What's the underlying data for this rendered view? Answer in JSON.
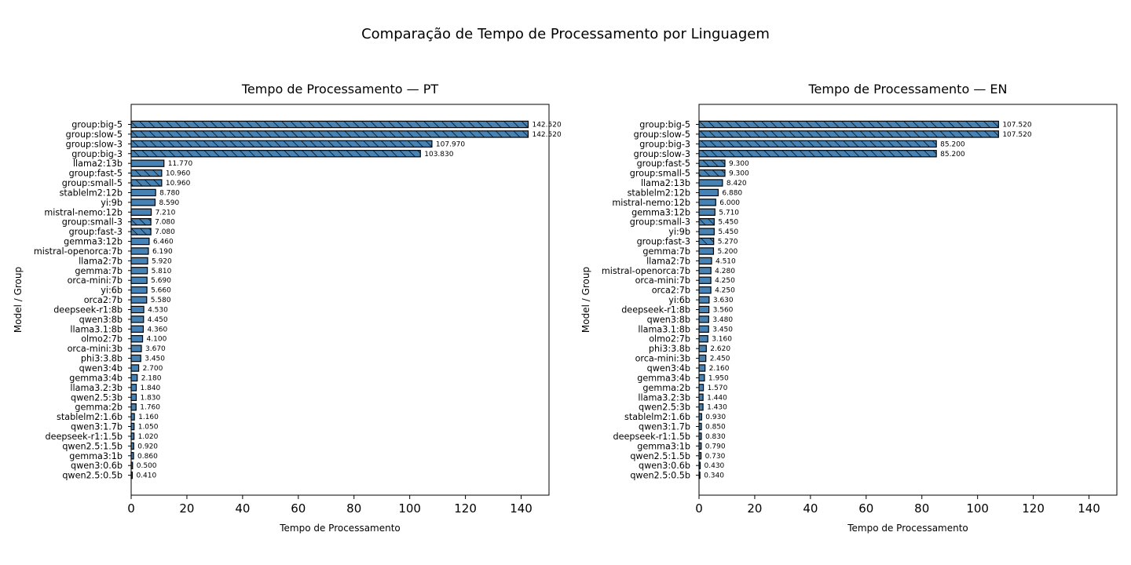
{
  "figure": {
    "title": "Comparação de Tempo de Processamento por Linguagem"
  },
  "colors": {
    "bar_fill": "#4682b4",
    "bar_edge": "#000000",
    "axes": "#000000",
    "text": "#000000"
  },
  "chart_data": [
    {
      "type": "bar",
      "orientation": "horizontal",
      "title": "Tempo de Processamento — PT",
      "xlabel": "Tempo de Processamento",
      "ylabel": "Model / Group",
      "xlim": [
        0,
        150
      ],
      "xticks": [
        0,
        20,
        40,
        60,
        80,
        100,
        120,
        140
      ],
      "grid": false,
      "categories": [
        "group:big-5",
        "group:slow-5",
        "group:slow-3",
        "group:big-3",
        "llama2:13b",
        "group:fast-5",
        "group:small-5",
        "stablelm2:12b",
        "yi:9b",
        "mistral-nemo:12b",
        "group:small-3",
        "group:fast-3",
        "gemma3:12b",
        "mistral-openorca:7b",
        "llama2:7b",
        "gemma:7b",
        "orca-mini:7b",
        "yi:6b",
        "orca2:7b",
        "deepseek-r1:8b",
        "qwen3:8b",
        "llama3.1:8b",
        "olmo2:7b",
        "orca-mini:3b",
        "phi3:3.8b",
        "qwen3:4b",
        "gemma3:4b",
        "llama3.2:3b",
        "qwen2.5:3b",
        "gemma:2b",
        "stablelm2:1.6b",
        "qwen3:1.7b",
        "deepseek-r1:1.5b",
        "qwen2.5:1.5b",
        "gemma3:1b",
        "qwen3:0.6b",
        "qwen2.5:0.5b"
      ],
      "values": [
        142.52,
        142.52,
        107.97,
        103.83,
        11.77,
        10.96,
        10.96,
        8.78,
        8.59,
        7.21,
        7.08,
        7.08,
        6.46,
        6.19,
        5.92,
        5.81,
        5.69,
        5.66,
        5.58,
        4.53,
        4.45,
        4.36,
        4.1,
        3.67,
        3.45,
        2.7,
        2.18,
        1.84,
        1.83,
        1.76,
        1.16,
        1.05,
        1.02,
        0.92,
        0.86,
        0.5,
        0.41
      ],
      "value_labels": [
        "142.520",
        "142.520",
        "107.970",
        "103.830",
        "11.770",
        "10.960",
        "10.960",
        "8.780",
        "8.590",
        "7.210",
        "7.080",
        "7.080",
        "6.460",
        "6.190",
        "5.920",
        "5.810",
        "5.690",
        "5.660",
        "5.580",
        "4.530",
        "4.450",
        "4.360",
        "4.100",
        "3.670",
        "3.450",
        "2.700",
        "2.180",
        "1.840",
        "1.830",
        "1.760",
        "1.160",
        "1.050",
        "1.020",
        "0.920",
        "0.860",
        "0.500",
        "0.410"
      ],
      "hatched": [
        true,
        true,
        true,
        true,
        false,
        true,
        true,
        false,
        false,
        false,
        true,
        true,
        false,
        false,
        false,
        false,
        false,
        false,
        false,
        false,
        false,
        false,
        false,
        false,
        false,
        false,
        false,
        false,
        false,
        false,
        false,
        false,
        false,
        false,
        false,
        false,
        false
      ]
    },
    {
      "type": "bar",
      "orientation": "horizontal",
      "title": "Tempo de Processamento — EN",
      "xlabel": "Tempo de Processamento",
      "ylabel": "Model / Group",
      "xlim": [
        0,
        150
      ],
      "xticks": [
        0,
        20,
        40,
        60,
        80,
        100,
        120,
        140
      ],
      "grid": false,
      "categories": [
        "group:big-5",
        "group:slow-5",
        "group:big-3",
        "group:slow-3",
        "group:fast-5",
        "group:small-5",
        "llama2:13b",
        "stablelm2:12b",
        "mistral-nemo:12b",
        "gemma3:12b",
        "group:small-3",
        "yi:9b",
        "group:fast-3",
        "gemma:7b",
        "llama2:7b",
        "mistral-openorca:7b",
        "orca-mini:7b",
        "orca2:7b",
        "yi:6b",
        "deepseek-r1:8b",
        "qwen3:8b",
        "llama3.1:8b",
        "olmo2:7b",
        "phi3:3.8b",
        "orca-mini:3b",
        "qwen3:4b",
        "gemma3:4b",
        "gemma:2b",
        "llama3.2:3b",
        "qwen2.5:3b",
        "stablelm2:1.6b",
        "qwen3:1.7b",
        "deepseek-r1:1.5b",
        "gemma3:1b",
        "qwen2.5:1.5b",
        "qwen3:0.6b",
        "qwen2.5:0.5b"
      ],
      "values": [
        107.52,
        107.52,
        85.2,
        85.2,
        9.3,
        9.3,
        8.42,
        6.88,
        6.0,
        5.71,
        5.45,
        5.45,
        5.27,
        5.2,
        4.51,
        4.28,
        4.25,
        4.25,
        3.63,
        3.56,
        3.48,
        3.45,
        3.16,
        2.62,
        2.45,
        2.16,
        1.95,
        1.57,
        1.44,
        1.43,
        0.93,
        0.85,
        0.83,
        0.79,
        0.73,
        0.43,
        0.34
      ],
      "value_labels": [
        "107.520",
        "107.520",
        "85.200",
        "85.200",
        "9.300",
        "9.300",
        "8.420",
        "6.880",
        "6.000",
        "5.710",
        "5.450",
        "5.450",
        "5.270",
        "5.200",
        "4.510",
        "4.280",
        "4.250",
        "4.250",
        "3.630",
        "3.560",
        "3.480",
        "3.450",
        "3.160",
        "2.620",
        "2.450",
        "2.160",
        "1.950",
        "1.570",
        "1.440",
        "1.430",
        "0.930",
        "0.850",
        "0.830",
        "0.790",
        "0.730",
        "0.430",
        "0.340"
      ],
      "hatched": [
        true,
        true,
        true,
        true,
        true,
        true,
        false,
        false,
        false,
        false,
        true,
        false,
        true,
        false,
        false,
        false,
        false,
        false,
        false,
        false,
        false,
        false,
        false,
        false,
        false,
        false,
        false,
        false,
        false,
        false,
        false,
        false,
        false,
        false,
        false,
        false,
        false
      ]
    }
  ]
}
